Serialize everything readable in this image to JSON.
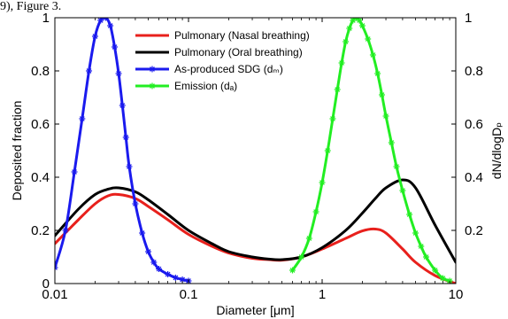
{
  "header_fragment": "9), Figure 3.",
  "chart_data": {
    "type": "line",
    "x_scale": "log",
    "xlim": [
      0.01,
      10
    ],
    "ylim_left": [
      0,
      1
    ],
    "ylim_right": [
      0,
      1
    ],
    "xlabel": "Diameter [μm]",
    "ylabel_left": "Deposited fraction",
    "ylabel_right": "dN/dlogDₚ",
    "x_ticks": [
      0.01,
      0.1,
      1,
      10
    ],
    "x_tick_labels": [
      "0.01",
      "0.1",
      "1",
      "10"
    ],
    "y_left_ticks": [
      0,
      0.2,
      0.4,
      0.6,
      0.8,
      1
    ],
    "y_left_tick_labels": [
      "0",
      "0.2",
      "0.4",
      "0.6",
      "0.8",
      "1"
    ],
    "y_right_ticks": [
      0.2,
      0.4,
      0.6,
      0.8,
      1
    ],
    "y_right_tick_labels": [
      "0.2",
      "0.4",
      "0.6",
      "0.8",
      "1"
    ],
    "legend_position": "top-center",
    "series": [
      {
        "name": "Pulmonary (Nasal breathing)",
        "color": "#e8201c",
        "marker": "none",
        "x": [
          0.01,
          0.015,
          0.02,
          0.025,
          0.03,
          0.04,
          0.05,
          0.07,
          0.1,
          0.15,
          0.2,
          0.3,
          0.4,
          0.5,
          0.7,
          1,
          1.5,
          2,
          2.5,
          3,
          4,
          5,
          7,
          10
        ],
        "y": [
          0.15,
          0.24,
          0.3,
          0.33,
          0.335,
          0.32,
          0.29,
          0.24,
          0.185,
          0.14,
          0.115,
          0.095,
          0.09,
          0.088,
          0.1,
          0.13,
          0.17,
          0.198,
          0.205,
          0.19,
          0.13,
          0.08,
          0.03,
          0.0
        ]
      },
      {
        "name": "Pulmonary (Oral breathing)",
        "color": "#000000",
        "marker": "none",
        "x": [
          0.01,
          0.015,
          0.02,
          0.025,
          0.03,
          0.04,
          0.05,
          0.07,
          0.1,
          0.15,
          0.2,
          0.3,
          0.4,
          0.5,
          0.7,
          1,
          1.5,
          2,
          2.5,
          3,
          4,
          5,
          7,
          10
        ],
        "y": [
          0.18,
          0.28,
          0.335,
          0.355,
          0.36,
          0.345,
          0.315,
          0.26,
          0.2,
          0.15,
          0.12,
          0.1,
          0.092,
          0.09,
          0.1,
          0.135,
          0.2,
          0.265,
          0.32,
          0.36,
          0.39,
          0.36,
          0.22,
          0.08
        ]
      },
      {
        "name": "As-produced SDG (dₘ)",
        "color": "#1a1aee",
        "marker": "star",
        "x": [
          0.01,
          0.012,
          0.014,
          0.016,
          0.018,
          0.02,
          0.022,
          0.024,
          0.026,
          0.028,
          0.03,
          0.032,
          0.034,
          0.036,
          0.04,
          0.045,
          0.05,
          0.055,
          0.06,
          0.07,
          0.08,
          0.09,
          0.1
        ],
        "y": [
          0.06,
          0.2,
          0.42,
          0.62,
          0.8,
          0.93,
          0.99,
          1.0,
          0.97,
          0.89,
          0.79,
          0.67,
          0.55,
          0.44,
          0.3,
          0.19,
          0.12,
          0.08,
          0.055,
          0.035,
          0.022,
          0.015,
          0.01
        ]
      },
      {
        "name": "Emission (dₐ)",
        "color": "#22ee22",
        "marker": "star",
        "x": [
          0.6,
          0.7,
          0.8,
          0.9,
          1.0,
          1.1,
          1.2,
          1.3,
          1.4,
          1.5,
          1.6,
          1.7,
          1.8,
          1.9,
          2.0,
          2.2,
          2.4,
          2.6,
          2.8,
          3.0,
          3.3,
          3.6,
          4.0,
          4.5,
          5.0,
          5.5,
          6.0,
          7.0,
          8.0,
          9.0
        ],
        "y": [
          0.05,
          0.1,
          0.17,
          0.27,
          0.38,
          0.5,
          0.62,
          0.73,
          0.83,
          0.91,
          0.96,
          0.99,
          1.0,
          0.99,
          0.97,
          0.92,
          0.86,
          0.79,
          0.71,
          0.63,
          0.53,
          0.44,
          0.35,
          0.26,
          0.19,
          0.14,
          0.1,
          0.05,
          0.02,
          0.01
        ]
      }
    ]
  }
}
